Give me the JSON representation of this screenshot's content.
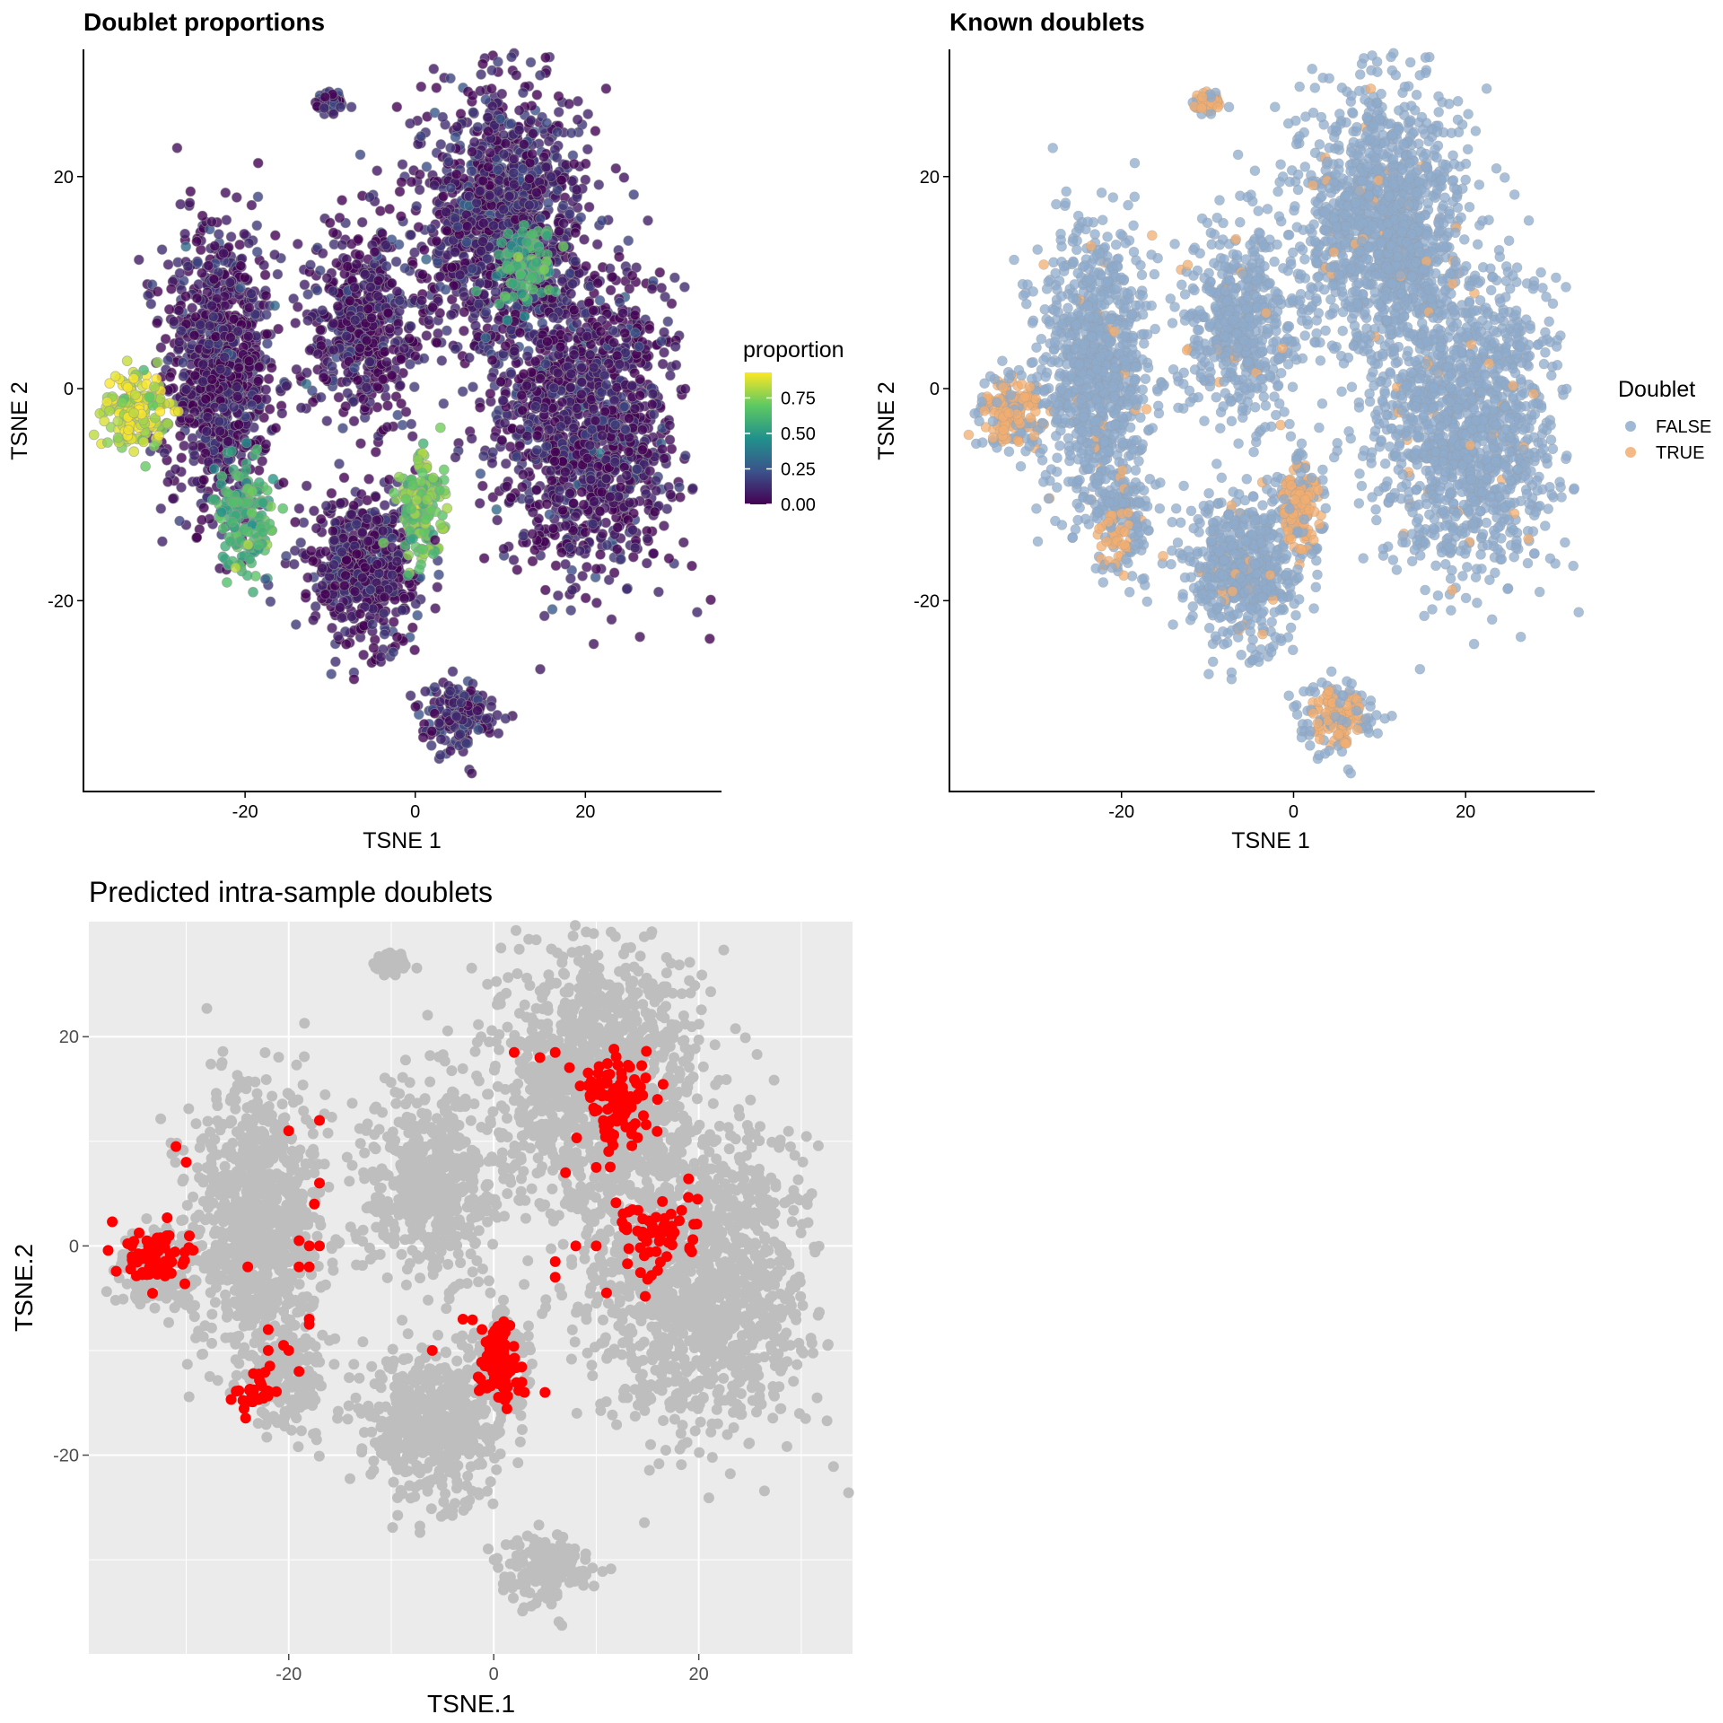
{
  "figure": {
    "panels": [
      {
        "title": "Doublet proportions",
        "xlabel": "TSNE 1",
        "ylabel": "TSNE 2",
        "xticks": [
          -20,
          0,
          20
        ],
        "yticks": [
          -20,
          0,
          20
        ],
        "xlim": [
          -39,
          36
        ],
        "ylim": [
          -38,
          32
        ],
        "legend": {
          "title": "proportion",
          "labels": [
            "0.75",
            "0.50",
            "0.25",
            "0.00"
          ],
          "values": [
            0.75,
            0.5,
            0.25,
            0.0
          ],
          "range": [
            0,
            0.93
          ],
          "colors": [
            "#440154",
            "#3b528b",
            "#21918c",
            "#5ec962",
            "#fde725"
          ]
        }
      },
      {
        "title": "Known doublets",
        "xlabel": "TSNE 1",
        "ylabel": "TSNE 2",
        "xticks": [
          -20,
          0,
          20
        ],
        "yticks": [
          -20,
          0,
          20
        ],
        "xlim": [
          -40,
          35
        ],
        "ylim": [
          -38,
          32
        ],
        "legend": {
          "title": "Doublet",
          "entries": [
            {
              "label": "FALSE",
              "color": "#8eabcc"
            },
            {
              "label": "TRUE",
              "color": "#f2ad70"
            }
          ]
        }
      },
      {
        "title": "Predicted intra-sample doublets",
        "xlabel": "TSNE.1",
        "ylabel": "TSNE.2",
        "xticks": [
          -20,
          0,
          20
        ],
        "yticks": [
          -20,
          0,
          20
        ],
        "xlim": [
          -39.5,
          35
        ],
        "ylim": [
          -39,
          31
        ],
        "background": "#ebebeb",
        "cell_color": "#bebebe",
        "doublet_color": "#ff0000"
      }
    ]
  },
  "chart_data": [
    {
      "type": "scatter",
      "title": "Doublet proportions",
      "xlabel": "TSNE 1",
      "ylabel": "TSNE 2",
      "xlim": [
        -39,
        36
      ],
      "ylim": [
        -38,
        32
      ],
      "color_scale": "viridis",
      "color_legend": {
        "title": "proportion",
        "ticks": [
          0.0,
          0.25,
          0.5,
          0.75
        ]
      },
      "clusters": [
        {
          "center": [
            -10,
            27
          ],
          "spread": [
            1.5,
            1.0
          ],
          "proportion": 0.1
        },
        {
          "center": [
            -23,
            2
          ],
          "spread": [
            5.5,
            11.5
          ],
          "proportion": 0.05
        },
        {
          "center": [
            -33,
            -2
          ],
          "spread": [
            3,
            3
          ],
          "proportion": 0.85
        },
        {
          "center": [
            -20,
            -12
          ],
          "spread": [
            3,
            4
          ],
          "proportion": 0.6
        },
        {
          "center": [
            -6,
            6
          ],
          "spread": [
            6,
            8
          ],
          "proportion": 0.05
        },
        {
          "center": [
            -6,
            -17
          ],
          "spread": [
            5.5,
            5.5
          ],
          "proportion": 0.05
        },
        {
          "center": [
            1,
            -11
          ],
          "spread": [
            2.2,
            4
          ],
          "proportion": 0.7
        },
        {
          "center": [
            10,
            16
          ],
          "spread": [
            8,
            11
          ],
          "proportion": 0.08
        },
        {
          "center": [
            20,
            -3
          ],
          "spread": [
            9,
            12
          ],
          "proportion": 0.06
        },
        {
          "center": [
            13,
            12
          ],
          "spread": [
            3,
            3
          ],
          "proportion": 0.6
        },
        {
          "center": [
            5,
            -31
          ],
          "spread": [
            3.5,
            3
          ],
          "proportion": 0.1
        }
      ]
    },
    {
      "type": "scatter",
      "title": "Known doublets",
      "xlabel": "TSNE 1",
      "ylabel": "TSNE 2",
      "xlim": [
        -40,
        35
      ],
      "ylim": [
        -38,
        32
      ],
      "legend": {
        "title": "Doublet",
        "placement": "right",
        "entries": [
          "FALSE",
          "TRUE"
        ]
      },
      "doublet_regions": [
        {
          "center": [
            -33,
            -2
          ],
          "spread": [
            3,
            3
          ]
        },
        {
          "center": [
            -21,
            -14
          ],
          "spread": [
            2,
            2.5
          ]
        },
        {
          "center": [
            1,
            -11
          ],
          "spread": [
            2.2,
            4
          ]
        },
        {
          "center": [
            5,
            -31
          ],
          "spread": [
            3,
            2.5
          ]
        },
        {
          "center": [
            -10,
            27
          ],
          "spread": [
            1.5,
            1
          ]
        }
      ]
    },
    {
      "type": "scatter",
      "title": "Predicted intra-sample doublets",
      "xlabel": "TSNE.1",
      "ylabel": "TSNE.2",
      "xlim": [
        -39.5,
        35
      ],
      "ylim": [
        -39,
        31
      ],
      "grid": true,
      "doublet_clusters": [
        {
          "center": [
            -33,
            -1
          ],
          "spread": [
            2.5,
            2
          ],
          "count": 75
        },
        {
          "center": [
            -23,
            -14
          ],
          "spread": [
            1.2,
            1.5
          ],
          "count": 30
        },
        {
          "center": [
            0.5,
            -11
          ],
          "spread": [
            1.3,
            2.8
          ],
          "count": 110
        },
        {
          "center": [
            12,
            14
          ],
          "spread": [
            2.2,
            3
          ],
          "count": 110
        },
        {
          "center": [
            16,
            1
          ],
          "spread": [
            3,
            3
          ],
          "count": 60
        }
      ],
      "doublet_points": [
        [
          -31,
          9.5
        ],
        [
          -30,
          8
        ],
        [
          -20,
          11
        ],
        [
          -17,
          12
        ],
        [
          -17,
          6
        ],
        [
          -17.5,
          4
        ],
        [
          -19,
          -2
        ],
        [
          -18,
          -2
        ],
        [
          -18,
          0
        ],
        [
          -17,
          0
        ],
        [
          -19,
          0.5
        ],
        [
          -24,
          -2
        ],
        [
          -22,
          -8
        ],
        [
          -22,
          -10
        ],
        [
          -20,
          -10
        ],
        [
          -20.5,
          -9.5
        ],
        [
          -18,
          -7
        ],
        [
          -18,
          -7.5
        ],
        [
          -19,
          -12
        ],
        [
          -6,
          -10
        ],
        [
          -3,
          -7
        ],
        [
          5,
          -14
        ],
        [
          3,
          -14
        ],
        [
          6,
          18.5
        ],
        [
          2,
          18.5
        ],
        [
          4.5,
          18
        ],
        [
          7,
          7
        ],
        [
          10,
          7.5
        ],
        [
          11,
          -4.5
        ],
        [
          6,
          -1.5
        ],
        [
          8,
          0
        ],
        [
          6,
          -3
        ],
        [
          10,
          0
        ]
      ]
    }
  ]
}
